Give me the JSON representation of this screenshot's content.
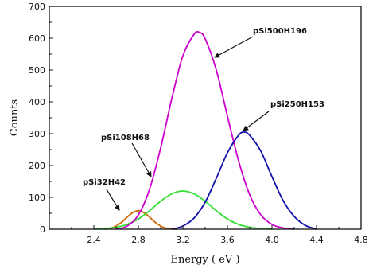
{
  "chart_data": {
    "type": "line",
    "title": "",
    "xlabel": "Energy ( eV )",
    "ylabel": "Counts",
    "xlim": [
      2.0,
      4.8
    ],
    "ylim": [
      0,
      700
    ],
    "x_ticks": [
      2.4,
      2.8,
      3.2,
      3.6,
      4.0,
      4.4,
      4.8
    ],
    "x_tick_labels": [
      "2.4",
      "2.8",
      "3.2",
      "3.6",
      "4.0",
      "4.4",
      "4.8"
    ],
    "y_ticks": [
      0,
      100,
      200,
      300,
      400,
      500,
      600,
      700
    ],
    "y_tick_labels": [
      "0",
      "100",
      "200",
      "300",
      "400",
      "500",
      "600",
      "700"
    ],
    "grid": false,
    "series": [
      {
        "name": "pSi32H42",
        "color": "#cc6600",
        "x": [
          2.5,
          2.55,
          2.6,
          2.65,
          2.7,
          2.75,
          2.8,
          2.85,
          2.9,
          2.95,
          3.0,
          3.05,
          3.1,
          3.15
        ],
        "y": [
          0,
          3,
          10,
          22,
          38,
          52,
          58,
          52,
          38,
          22,
          10,
          3,
          1,
          0
        ]
      },
      {
        "name": "pSi108H68",
        "color": "#33dd33",
        "x": [
          2.4,
          2.5,
          2.6,
          2.7,
          2.8,
          2.9,
          3.0,
          3.1,
          3.2,
          3.3,
          3.4,
          3.5,
          3.6,
          3.7,
          3.8,
          3.9,
          4.0
        ],
        "y": [
          0,
          2,
          6,
          15,
          32,
          58,
          88,
          111,
          120,
          111,
          88,
          58,
          32,
          15,
          6,
          2,
          0
        ]
      },
      {
        "name": "pSi500H196",
        "color": "#cc00cc",
        "x": [
          2.6,
          2.7,
          2.8,
          2.9,
          3.0,
          3.1,
          3.2,
          3.3,
          3.35,
          3.4,
          3.5,
          3.6,
          3.7,
          3.8,
          3.9,
          4.0,
          4.1,
          4.2
        ],
        "y": [
          0,
          10,
          45,
          125,
          255,
          410,
          545,
          612,
          618,
          598,
          500,
          355,
          215,
          108,
          45,
          15,
          4,
          0
        ]
      },
      {
        "name": "pSi250H153",
        "color": "#1111aa",
        "x": [
          3.1,
          3.2,
          3.3,
          3.4,
          3.5,
          3.6,
          3.7,
          3.75,
          3.8,
          3.9,
          4.0,
          4.1,
          4.2,
          4.3,
          4.4
        ],
        "y": [
          0,
          10,
          35,
          85,
          160,
          240,
          295,
          305,
          295,
          245,
          165,
          90,
          40,
          12,
          0
        ]
      }
    ],
    "annotations": [
      {
        "text": "pSi500H196"
      },
      {
        "text": "pSi250H153"
      },
      {
        "text": "pSi108H68"
      },
      {
        "text": "pSi32H42"
      }
    ]
  }
}
